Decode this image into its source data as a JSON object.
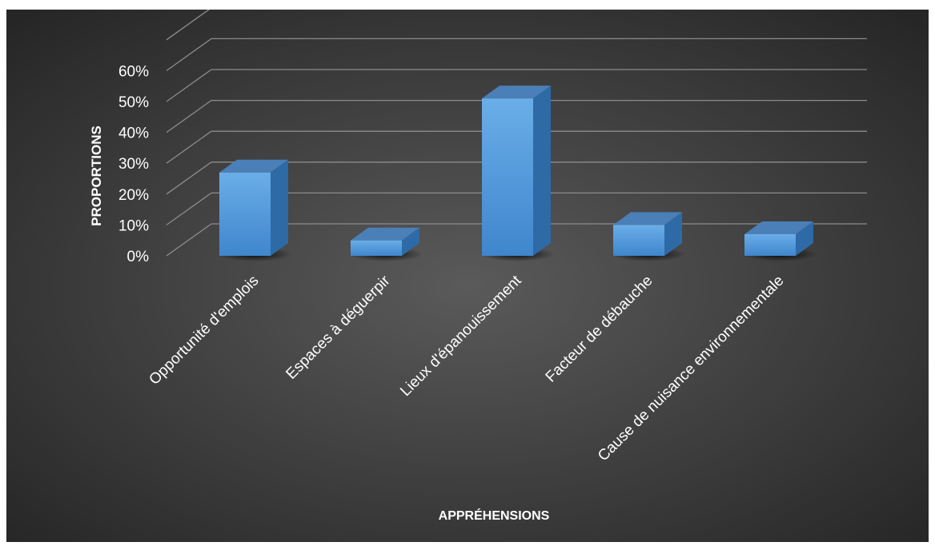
{
  "chart_data": {
    "type": "bar",
    "categories": [
      "Opportunité d'emplois",
      "Espaces à déguerpir",
      "Lieux d'épanouissement",
      "Facteur de débauche",
      "Cause de nuisance environnementale"
    ],
    "values": [
      27,
      5,
      51,
      10,
      7
    ],
    "value_unit": "%",
    "ylim": [
      0,
      60
    ],
    "yticks": [
      "0%",
      "10%",
      "20%",
      "30%",
      "40%",
      "50%",
      "60%"
    ],
    "xlabel": "APPRÉHENSIONS",
    "ylabel": "PROPORTIONS",
    "grid": true,
    "legend": "none",
    "style": "3d-column",
    "colors": {
      "background_center": "#5a5a5a",
      "background_edge": "#262626",
      "bar_front_top": "#6aaee8",
      "bar_front_bottom": "#3f86cc",
      "bar_side": "#2e6aa6",
      "bar_top": "#4a7fb7",
      "grid": "#8c8c8c",
      "text": "#ffffff"
    }
  }
}
